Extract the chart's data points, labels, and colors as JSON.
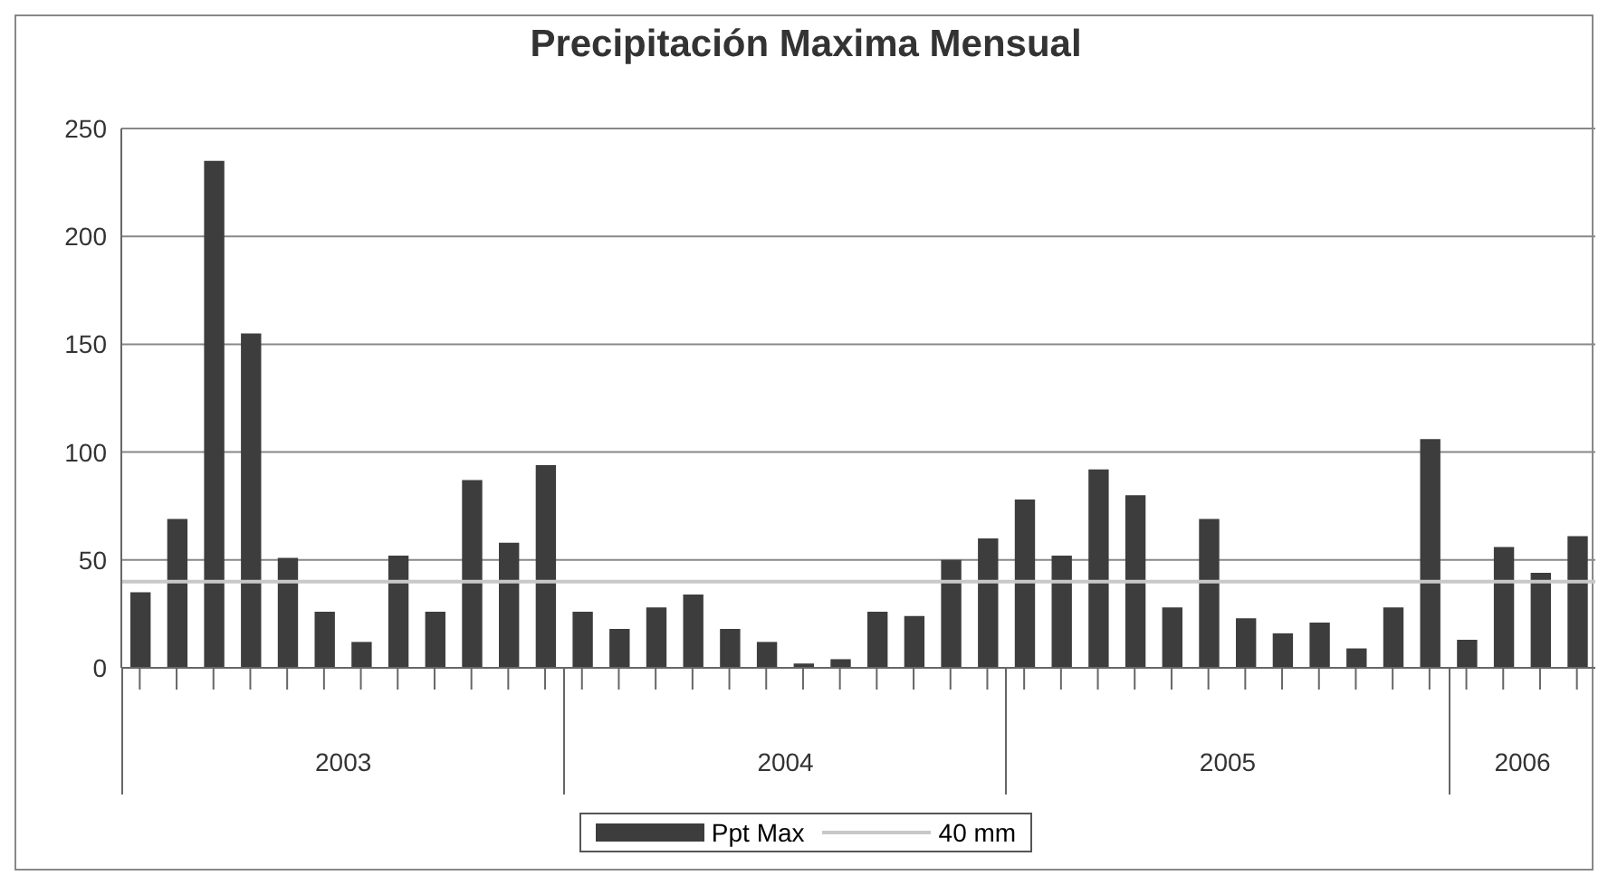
{
  "chart_data": {
    "type": "bar",
    "title": "Precipitación Maxima Mensual",
    "categories": [
      null,
      null,
      null,
      null,
      null,
      null,
      null,
      null,
      null,
      null,
      null,
      null,
      null,
      null,
      null,
      null,
      null,
      null,
      null,
      null,
      null,
      null,
      null,
      null,
      null,
      null,
      null,
      null,
      null,
      null,
      null,
      null,
      null,
      null,
      null,
      null,
      null,
      null,
      null,
      null
    ],
    "series": [
      {
        "name": "Ppt Max",
        "color": "#3d3d3d",
        "values": [
          35,
          69,
          235,
          155,
          51,
          26,
          12,
          52,
          26,
          87,
          58,
          94,
          26,
          18,
          28,
          34,
          18,
          12,
          2,
          4,
          26,
          24,
          50,
          60,
          78,
          52,
          92,
          80,
          28,
          69,
          23,
          16,
          21,
          9,
          28,
          106,
          13,
          56,
          44,
          61
        ]
      }
    ],
    "ref_lines": [
      {
        "axis": "y",
        "value": 40,
        "label": "40 mm",
        "color": "#c8c8c8"
      }
    ],
    "annotations": [
      "2003",
      "2004",
      "2005",
      "2006"
    ],
    "ylim": [
      0,
      250
    ],
    "yticks": [
      0,
      50,
      100,
      150,
      200,
      250
    ],
    "grid": "y",
    "legend": "bottom"
  }
}
